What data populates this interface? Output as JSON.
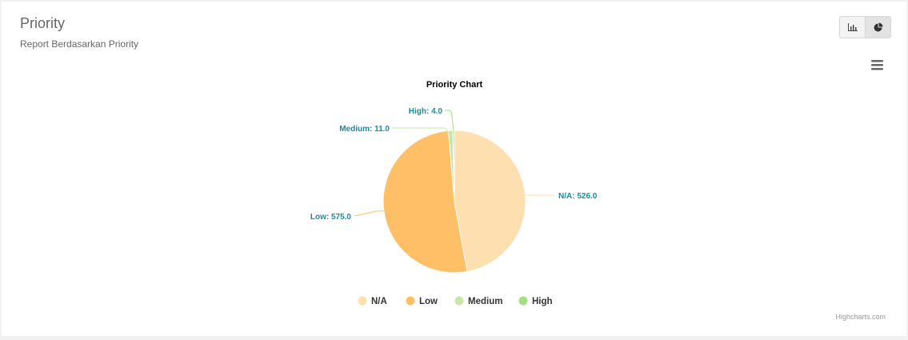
{
  "header": {
    "title": "Priority",
    "subtitle": "Report Berdasarkan Priority"
  },
  "toolbar": {
    "buttons": [
      {
        "icon": "bar-chart-icon",
        "active": false
      },
      {
        "icon": "pie-chart-icon",
        "active": true
      }
    ]
  },
  "chart_data": {
    "type": "pie",
    "title": "Priority Chart",
    "slices": [
      {
        "label": "N/A",
        "value": 526.0,
        "display": "N/A: 526.0",
        "color": "#fddfb0"
      },
      {
        "label": "Low",
        "value": 575.0,
        "display": "Low: 575.0",
        "color": "#ffbf66"
      },
      {
        "label": "Medium",
        "value": 11.0,
        "display": "Medium: 11.0",
        "color": "#c8e6a8"
      },
      {
        "label": "High",
        "value": 4.0,
        "display": "High: 4.0",
        "color": "#a3de82"
      }
    ],
    "legend": [
      "N/A",
      "Low",
      "Medium",
      "High"
    ],
    "legend_position": "bottom",
    "data_label_color": "#168e9e",
    "credits": "Highcharts.com"
  }
}
